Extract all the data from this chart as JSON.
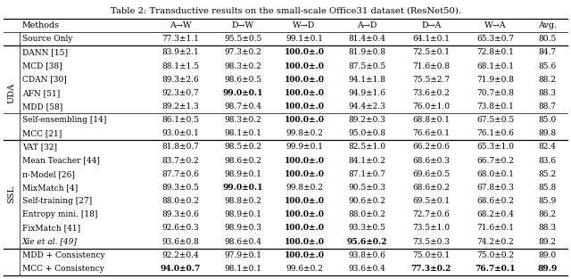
{
  "title": "Table 2: Transductive results on the small-scale Office31 dataset (ResNet50).",
  "columns": [
    "Methods",
    "A→W",
    "D→W",
    "W→D",
    "A→D",
    "D→A",
    "W→A",
    "Avg."
  ],
  "rows": [
    {
      "group": "",
      "method": "Source Only",
      "values": [
        "77.3±1.1",
        "95.5±0.5",
        "99.1±0.1",
        "81.4±0.4",
        "64.1±0.1",
        "65.3±0.7",
        "80.5"
      ],
      "bold": [
        false,
        false,
        false,
        false,
        false,
        false,
        false
      ],
      "italic_method": false
    },
    {
      "group": "UDA",
      "method": "DANN [15]",
      "values": [
        "83.9±2.1",
        "97.3±0.2",
        "100.0±.0",
        "81.9±0.8",
        "72.5±0.1",
        "72.8±0.1",
        "84.7"
      ],
      "bold": [
        false,
        false,
        true,
        false,
        false,
        false,
        false
      ],
      "italic_method": false
    },
    {
      "group": "UDA",
      "method": "MCD [38]",
      "values": [
        "88.1±1.5",
        "98.3±0.2",
        "100.0±.0",
        "87.5±0.5",
        "71.6±0.8",
        "68.1±0.1",
        "85.6"
      ],
      "bold": [
        false,
        false,
        true,
        false,
        false,
        false,
        false
      ],
      "italic_method": false
    },
    {
      "group": "UDA",
      "method": "CDAN [30]",
      "values": [
        "89.3±2.6",
        "98.6±0.5",
        "100.0±.0",
        "94.1±1.8",
        "75.5±2.7",
        "71.9±0.8",
        "88.2"
      ],
      "bold": [
        false,
        false,
        true,
        false,
        false,
        false,
        false
      ],
      "italic_method": false
    },
    {
      "group": "UDA",
      "method": "AFN [51]",
      "values": [
        "92.3±0.7",
        "99.0±0.1",
        "100.0±.0",
        "94.9±1.6",
        "73.6±0.2",
        "70.7±0.8",
        "88.3"
      ],
      "bold": [
        false,
        true,
        true,
        false,
        false,
        false,
        false
      ],
      "italic_method": false
    },
    {
      "group": "UDA",
      "method": "MDD [58]",
      "values": [
        "89.2±1.3",
        "98.7±0.4",
        "100.0±.0",
        "94.4±2.3",
        "76.0±1.0",
        "73.8±0.1",
        "88.7"
      ],
      "bold": [
        false,
        false,
        true,
        false,
        false,
        false,
        false
      ],
      "italic_method": false
    },
    {
      "group": "UDA",
      "method": "Self-ensembling [14]",
      "values": [
        "86.1±0.5",
        "98.3±0.2",
        "100.0±.0",
        "89.2±0.3",
        "68.8±0.1",
        "67.5±0.5",
        "85.0"
      ],
      "bold": [
        false,
        false,
        true,
        false,
        false,
        false,
        false
      ],
      "italic_method": false
    },
    {
      "group": "UDA",
      "method": "MCC [21]",
      "values": [
        "93.0±0.1",
        "98.1±0.1",
        "99.8±0.2",
        "95.0±0.8",
        "76.6±0.1",
        "76.1±0.6",
        "89.8"
      ],
      "bold": [
        false,
        false,
        false,
        false,
        false,
        false,
        false
      ],
      "italic_method": false
    },
    {
      "group": "SSL",
      "method": "VAT [32]",
      "values": [
        "81.8±0.7",
        "98.5±0.2",
        "99.9±0.1",
        "82.5±1.0",
        "66.2±0.6",
        "65.3±1.0",
        "82.4"
      ],
      "bold": [
        false,
        false,
        false,
        false,
        false,
        false,
        false
      ],
      "italic_method": false
    },
    {
      "group": "SSL",
      "method": "Mean Teacher [44]",
      "values": [
        "83.7±0.2",
        "98.6±0.2",
        "100.0±.0",
        "84.1±0.2",
        "68.6±0.3",
        "66.7±0.2",
        "83.6"
      ],
      "bold": [
        false,
        false,
        true,
        false,
        false,
        false,
        false
      ],
      "italic_method": false
    },
    {
      "group": "SSL",
      "method": "π-Model [26]",
      "values": [
        "87.7±0.6",
        "98.9±0.1",
        "100.0±.0",
        "87.1±0.7",
        "69.6±0.5",
        "68.0±0.1",
        "85.2"
      ],
      "bold": [
        false,
        false,
        true,
        false,
        false,
        false,
        false
      ],
      "italic_method": false
    },
    {
      "group": "SSL",
      "method": "MixMatch [4]",
      "values": [
        "89.3±0.5",
        "99.0±0.1",
        "99.8±0.2",
        "90.5±0.3",
        "68.6±0.2",
        "67.8±0.3",
        "85.8"
      ],
      "bold": [
        false,
        true,
        false,
        false,
        false,
        false,
        false
      ],
      "italic_method": false
    },
    {
      "group": "SSL",
      "method": "Self-training [27]",
      "values": [
        "88.0±0.2",
        "98.8±0.2",
        "100.0±.0",
        "90.6±0.2",
        "69.5±0.1",
        "68.6±0.2",
        "85.9"
      ],
      "bold": [
        false,
        false,
        true,
        false,
        false,
        false,
        false
      ],
      "italic_method": false
    },
    {
      "group": "SSL",
      "method": "Entropy mini. [18]",
      "values": [
        "89.3±0.6",
        "98.9±0.1",
        "100.0±.0",
        "88.0±0.2",
        "72.7±0.6",
        "68.2±0.4",
        "86.2"
      ],
      "bold": [
        false,
        false,
        true,
        false,
        false,
        false,
        false
      ],
      "italic_method": false
    },
    {
      "group": "SSL",
      "method": "FixMatch [41]",
      "values": [
        "92.6±0.3",
        "98.9±0.3",
        "100.0±.0",
        "93.3±0.5",
        "73.5±1.0",
        "71.6±0.1",
        "88.3"
      ],
      "bold": [
        false,
        false,
        true,
        false,
        false,
        false,
        false
      ],
      "italic_method": false
    },
    {
      "group": "SSL",
      "method": "Xie et al. [49]",
      "values": [
        "93.6±0.8",
        "98.6±0.4",
        "100.0±.0",
        "95.6±0.2",
        "73.5±0.3",
        "74.2±0.2",
        "89.2"
      ],
      "bold": [
        false,
        false,
        true,
        true,
        false,
        false,
        false
      ],
      "italic_method": true
    },
    {
      "group": "",
      "method": "MDD + Consistency",
      "values": [
        "92.2±0.4",
        "97.9±0.1",
        "100.0±.0",
        "93.8±0.6",
        "75.0±0.1",
        "75.0±0.2",
        "89.0"
      ],
      "bold": [
        false,
        false,
        true,
        false,
        false,
        false,
        false
      ],
      "italic_method": false
    },
    {
      "group": "",
      "method": "MCC + Consistency",
      "values": [
        "94.0±0.7",
        "98.1±0.1",
        "99.6±0.2",
        "93.6±0.4",
        "77.3±0.2",
        "76.7±0.1",
        "89.9"
      ],
      "bold": [
        true,
        false,
        false,
        false,
        true,
        true,
        true
      ],
      "italic_method": false
    }
  ],
  "uda_row_range": [
    1,
    8
  ],
  "ssl_row_range": [
    8,
    16
  ],
  "thick_lines_after_rows": [
    0,
    1,
    8,
    16
  ],
  "thin_lines_after_rows": [
    0
  ]
}
